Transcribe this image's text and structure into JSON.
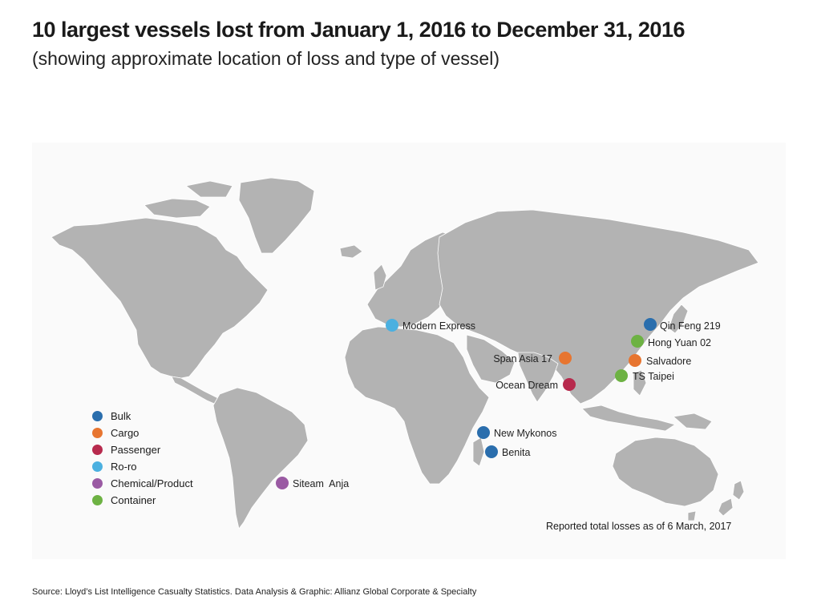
{
  "title": "10 largest vessels lost from January 1, 2016 to December 31, 2016",
  "subtitle": "(showing approximate location of loss and type of vessel)",
  "legend": [
    {
      "type": "Bulk",
      "color": "#2a6ead"
    },
    {
      "type": "Cargo",
      "color": "#e77530"
    },
    {
      "type": "Passenger",
      "color": "#b72a4d"
    },
    {
      "type": "Ro-ro",
      "color": "#4bb0e0"
    },
    {
      "type": "Chemical/Product",
      "color": "#9a5aa3"
    },
    {
      "type": "Container",
      "color": "#6db243"
    }
  ],
  "vessels": [
    {
      "name": "Modern Express",
      "type": "Ro-ro"
    },
    {
      "name": "Qin Feng 219",
      "type": "Bulk"
    },
    {
      "name": "Hong Yuan 02",
      "type": "Container"
    },
    {
      "name": "Span Asia 17",
      "type": "Cargo"
    },
    {
      "name": "Salvadore",
      "type": "Cargo"
    },
    {
      "name": "TS Taipei",
      "type": "Container"
    },
    {
      "name": "Ocean Dream",
      "type": "Passenger"
    },
    {
      "name": "New Mykonos",
      "type": "Bulk"
    },
    {
      "name": "Benita",
      "type": "Bulk"
    },
    {
      "name": "Siteam  Anja",
      "type": "Chemical/Product"
    }
  ],
  "note": "Reported total losses as of 6 March, 2017",
  "source": "Source: Lloyd’s List Intelligence Casualty Statistics. Data Analysis & Graphic: Allianz Global Corporate & Specialty"
}
